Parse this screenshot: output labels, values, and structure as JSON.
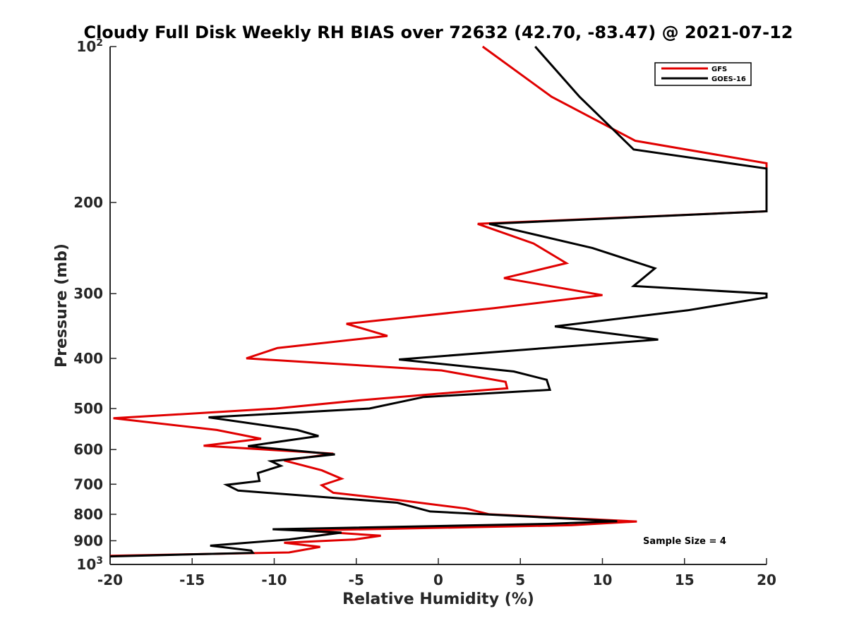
{
  "chart_data": {
    "type": "line",
    "title": "Cloudy Full Disk Weekly RH BIAS over 72632 (42.70, -83.47) @ 2021-07-12",
    "xlabel": "Relative Humidity (%)",
    "ylabel": "Pressure (mb)",
    "xlim": [
      -20,
      20
    ],
    "ylim": [
      100,
      1000
    ],
    "y_scale": "log",
    "y_reversed": true,
    "x_ticks": [
      "-20",
      "-15",
      "-10",
      "-5",
      "0",
      "5",
      "10",
      "15",
      "20"
    ],
    "y_ticks": [
      {
        "value": 100,
        "base": "10",
        "exp": "2"
      },
      {
        "value": 200,
        "label": "200"
      },
      {
        "value": 300,
        "label": "300"
      },
      {
        "value": 400,
        "label": "400"
      },
      {
        "value": 500,
        "label": "500"
      },
      {
        "value": 600,
        "label": "600"
      },
      {
        "value": 700,
        "label": "700"
      },
      {
        "value": 800,
        "label": "800"
      },
      {
        "value": 900,
        "label": "900"
      },
      {
        "value": 1000,
        "base": "10",
        "exp": "3"
      }
    ],
    "grid": false,
    "legend_position": "top-right",
    "annotation": "Sample Size = 4",
    "series": [
      {
        "name": "GFS",
        "color": "#e00000",
        "points": [
          {
            "x": 2.7,
            "y": 100
          },
          {
            "x": 6.9,
            "y": 125
          },
          {
            "x": 12.0,
            "y": 152
          },
          {
            "x": 20.0,
            "y": 168
          },
          {
            "x": 20.0,
            "y": 208
          },
          {
            "x": 2.4,
            "y": 220
          },
          {
            "x": 5.8,
            "y": 240
          },
          {
            "x": 7.8,
            "y": 262
          },
          {
            "x": 4.0,
            "y": 280
          },
          {
            "x": 10.0,
            "y": 302
          },
          {
            "x": 3.4,
            "y": 320
          },
          {
            "x": -5.6,
            "y": 343
          },
          {
            "x": -3.1,
            "y": 362
          },
          {
            "x": -9.8,
            "y": 382
          },
          {
            "x": -11.7,
            "y": 400
          },
          {
            "x": 0.2,
            "y": 422
          },
          {
            "x": 4.1,
            "y": 444
          },
          {
            "x": 4.2,
            "y": 457
          },
          {
            "x": 0.0,
            "y": 468
          },
          {
            "x": -4.8,
            "y": 482
          },
          {
            "x": -9.9,
            "y": 500
          },
          {
            "x": -19.8,
            "y": 522
          },
          {
            "x": -13.5,
            "y": 550
          },
          {
            "x": -10.8,
            "y": 572
          },
          {
            "x": -14.3,
            "y": 590
          },
          {
            "x": -6.4,
            "y": 611
          },
          {
            "x": -9.4,
            "y": 630
          },
          {
            "x": -7.1,
            "y": 658
          },
          {
            "x": -5.9,
            "y": 683
          },
          {
            "x": -7.1,
            "y": 703
          },
          {
            "x": -6.4,
            "y": 727
          },
          {
            "x": -2.6,
            "y": 750
          },
          {
            "x": 1.7,
            "y": 780
          },
          {
            "x": 3.1,
            "y": 800
          },
          {
            "x": 12.1,
            "y": 826
          },
          {
            "x": 8.1,
            "y": 840
          },
          {
            "x": -8.3,
            "y": 860
          },
          {
            "x": -3.5,
            "y": 880
          },
          {
            "x": -5.1,
            "y": 895
          },
          {
            "x": -9.4,
            "y": 908
          },
          {
            "x": -7.2,
            "y": 925
          },
          {
            "x": -9.1,
            "y": 948
          },
          {
            "x": -20.0,
            "y": 962
          }
        ]
      },
      {
        "name": "GOES-16",
        "color": "#000000",
        "points": [
          {
            "x": 5.9,
            "y": 100
          },
          {
            "x": 8.6,
            "y": 125
          },
          {
            "x": 11.9,
            "y": 158
          },
          {
            "x": 20.0,
            "y": 172
          },
          {
            "x": 20.0,
            "y": 208
          },
          {
            "x": 3.1,
            "y": 220
          },
          {
            "x": 9.4,
            "y": 245
          },
          {
            "x": 13.2,
            "y": 268
          },
          {
            "x": 11.9,
            "y": 290
          },
          {
            "x": 20.0,
            "y": 300
          },
          {
            "x": 20.0,
            "y": 305
          },
          {
            "x": 15.2,
            "y": 323
          },
          {
            "x": 7.1,
            "y": 347
          },
          {
            "x": 13.4,
            "y": 368
          },
          {
            "x": 6.6,
            "y": 382
          },
          {
            "x": -2.4,
            "y": 402
          },
          {
            "x": 4.6,
            "y": 424
          },
          {
            "x": 6.6,
            "y": 440
          },
          {
            "x": 6.8,
            "y": 460
          },
          {
            "x": -0.9,
            "y": 475
          },
          {
            "x": -4.2,
            "y": 500
          },
          {
            "x": -14.0,
            "y": 520
          },
          {
            "x": -8.6,
            "y": 550
          },
          {
            "x": -7.3,
            "y": 565
          },
          {
            "x": -11.6,
            "y": 591
          },
          {
            "x": -6.3,
            "y": 613
          },
          {
            "x": -10.2,
            "y": 632
          },
          {
            "x": -9.6,
            "y": 645
          },
          {
            "x": -11.0,
            "y": 666
          },
          {
            "x": -10.9,
            "y": 690
          },
          {
            "x": -12.9,
            "y": 702
          },
          {
            "x": -12.2,
            "y": 720
          },
          {
            "x": -2.5,
            "y": 760
          },
          {
            "x": -0.5,
            "y": 790
          },
          {
            "x": 10.9,
            "y": 825
          },
          {
            "x": 6.7,
            "y": 835
          },
          {
            "x": -10.1,
            "y": 855
          },
          {
            "x": -5.9,
            "y": 868
          },
          {
            "x": -9.1,
            "y": 895
          },
          {
            "x": -13.9,
            "y": 920
          },
          {
            "x": -11.4,
            "y": 940
          },
          {
            "x": -11.3,
            "y": 950
          },
          {
            "x": -20.0,
            "y": 965
          }
        ]
      }
    ]
  }
}
